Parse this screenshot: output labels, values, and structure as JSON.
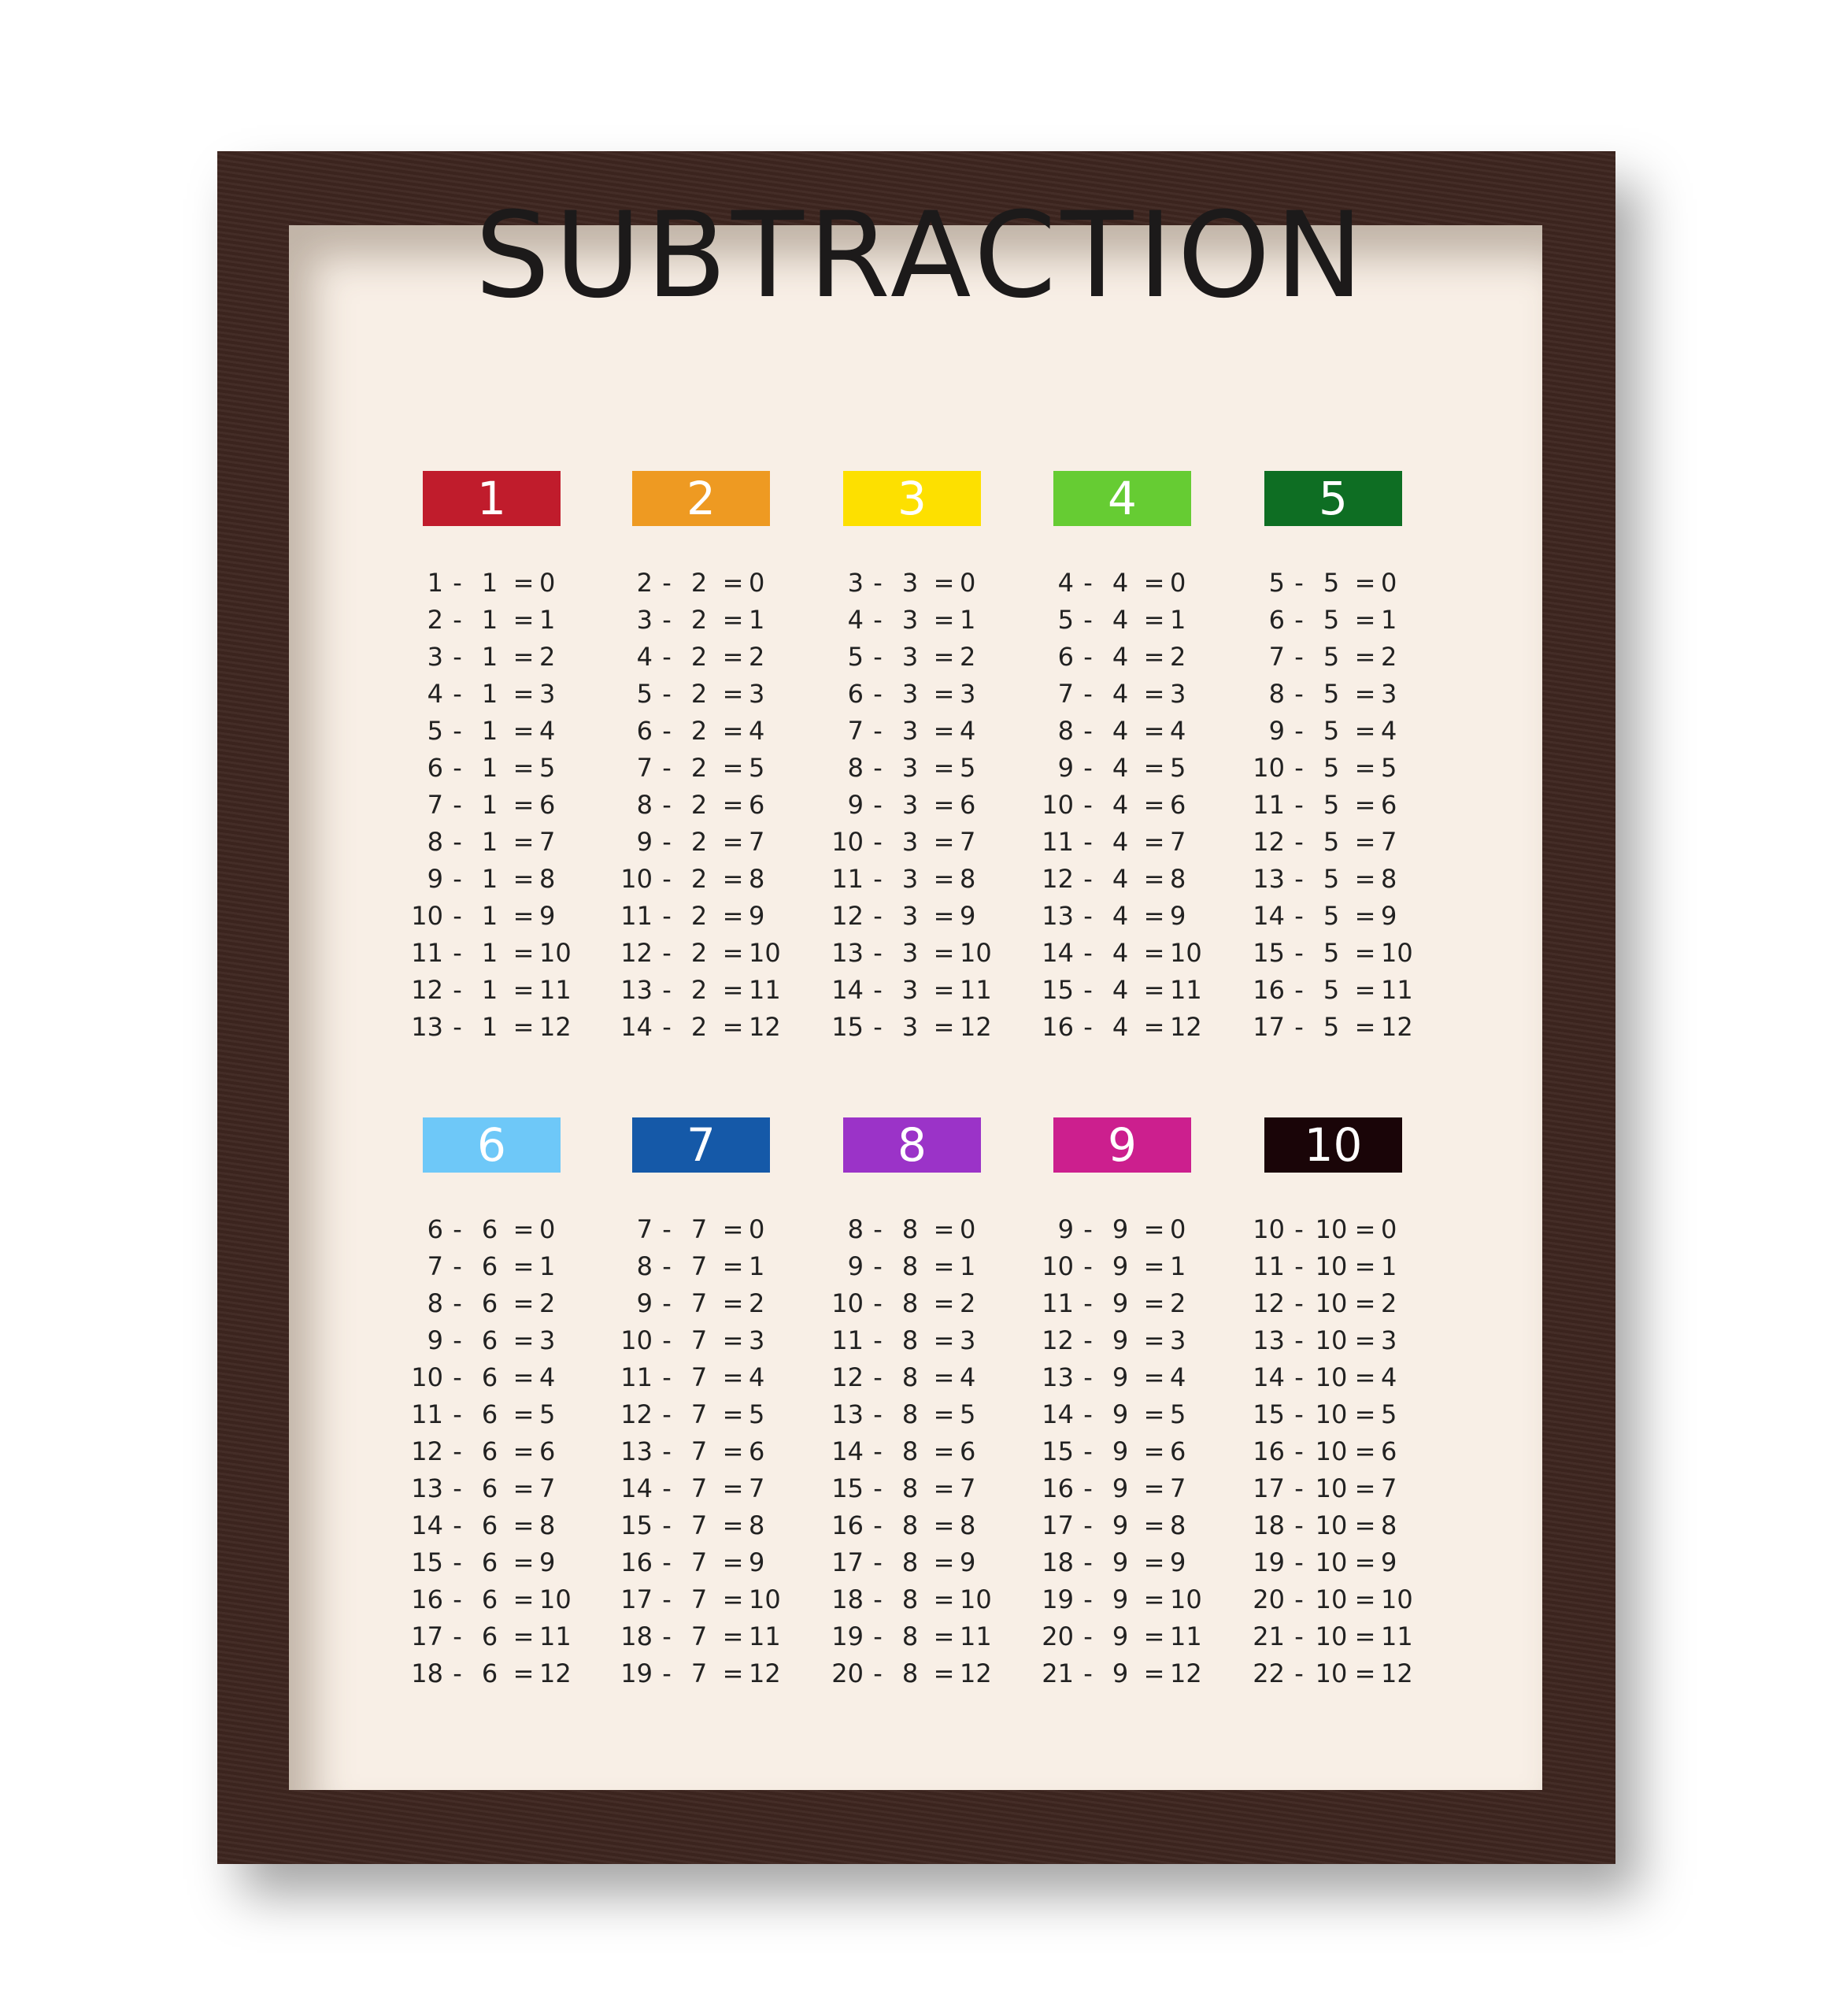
{
  "title": "SUBTRACTION",
  "tables": [
    {
      "label": "1",
      "color": "#c01c2c",
      "equations": [
        "1 - 1 = 0",
        "2 - 1 = 1",
        "3 - 1 = 2",
        "4 - 1 = 3",
        "5 - 1 = 4",
        "6 - 1 = 5",
        "7 - 1 = 6",
        "8 - 1 = 7",
        "9 - 1 = 8",
        "10 - 1 = 9",
        "11 - 1 = 10",
        "12 - 1 = 11",
        "13 - 1 = 12"
      ]
    },
    {
      "label": "2",
      "color": "#ee9a22",
      "equations": [
        "2 - 2 = 0",
        "3 - 2 = 1",
        "4 - 2 = 2",
        "5 - 2 = 3",
        "6 - 2 = 4",
        "7 - 2 = 5",
        "8 - 2 = 6",
        "9 - 2 = 7",
        "10 - 2 = 8",
        "11 - 2 = 9",
        "12 - 2 = 10",
        "13 - 2 = 11",
        "14 - 2 = 12"
      ]
    },
    {
      "label": "3",
      "color": "#fde000",
      "equations": [
        "3 - 3 = 0",
        "4 - 3 = 1",
        "5 - 3 = 2",
        "6 - 3 = 3",
        "7 - 3 = 4",
        "8 - 3 = 5",
        "9 - 3 = 6",
        "10 - 3 = 7",
        "11 - 3 = 8",
        "12 - 3 = 9",
        "13 - 3 = 10",
        "14 - 3 = 11",
        "15 - 3 = 12"
      ]
    },
    {
      "label": "4",
      "color": "#66cc33",
      "equations": [
        "4 - 4 = 0",
        "5 - 4 = 1",
        "6 - 4 = 2",
        "7 - 4 = 3",
        "8 - 4 = 4",
        "9 - 4 = 5",
        "10 - 4 = 6",
        "11 - 4 = 7",
        "12 - 4 = 8",
        "13 - 4 = 9",
        "14 - 4 = 10",
        "15 - 4 = 11",
        "16 - 4 = 12"
      ]
    },
    {
      "label": "5",
      "color": "#0e6e23",
      "equations": [
        "5 - 5 = 0",
        "6 - 5 = 1",
        "7 - 5 = 2",
        "8 - 5 = 3",
        "9 - 5 = 4",
        "10 - 5 = 5",
        "11 - 5 = 6",
        "12 - 5 = 7",
        "13 - 5 = 8",
        "14 - 5 = 9",
        "15 - 5 = 10",
        "16 - 5 = 11",
        "17 - 5 = 12"
      ]
    },
    {
      "label": "6",
      "color": "#6ec8f8",
      "equations": [
        "6 - 6 = 0",
        "7 - 6 = 1",
        "8 - 6 = 2",
        "9 - 6 = 3",
        "10 - 6 = 4",
        "11 - 6 = 5",
        "12 - 6 = 6",
        "13 - 6 = 7",
        "14 - 6 = 8",
        "15 - 6 = 9",
        "16 - 6 = 10",
        "17 - 6 = 11",
        "18 - 6 = 12"
      ]
    },
    {
      "label": "7",
      "color": "#1559a8",
      "equations": [
        "7 - 7 = 0",
        "8 - 7 = 1",
        "9 - 7 = 2",
        "10 - 7 = 3",
        "11 - 7 = 4",
        "12 - 7 = 5",
        "13 - 7 = 6",
        "14 - 7 = 7",
        "15 - 7 = 8",
        "16 - 7 = 9",
        "17 - 7 = 10",
        "18 - 7 = 11",
        "19 - 7 = 12"
      ]
    },
    {
      "label": "8",
      "color": "#9b33c8",
      "equations": [
        "8 - 8 = 0",
        "9 - 8 = 1",
        "10 - 8 = 2",
        "11 - 8 = 3",
        "12 - 8 = 4",
        "13 - 8 = 5",
        "14 - 8 = 6",
        "15 - 8 = 7",
        "16 - 8 = 8",
        "17 - 8 = 9",
        "18 - 8 = 10",
        "19 - 8 = 11",
        "20 - 8 = 12"
      ]
    },
    {
      "label": "9",
      "color": "#cc1f8e",
      "equations": [
        "9 - 9 = 0",
        "10 - 9 = 1",
        "11 - 9 = 2",
        "12 - 9 = 3",
        "13 - 9 = 4",
        "14 - 9 = 5",
        "15 - 9 = 6",
        "16 - 9 = 7",
        "17 - 9 = 8",
        "18 - 9 = 9",
        "19 - 9 = 10",
        "20 - 9 = 11",
        "21 - 9 = 12"
      ]
    },
    {
      "label": "10",
      "color": "#1a0508",
      "equations": [
        "10 - 10 = 0",
        "11 - 10 = 1",
        "12 - 10 = 2",
        "13 - 10 = 3",
        "14 - 10 = 4",
        "15 - 10 = 5",
        "16 - 10 = 6",
        "17 - 10 = 7",
        "18 - 10 = 8",
        "19 - 10 = 9",
        "20 - 10 = 10",
        "21 - 10 = 11",
        "22 - 10 = 12"
      ]
    }
  ],
  "colors": {
    "frame": "#3e2620",
    "mat": "#f8efe6",
    "text": "#1c1a1a"
  }
}
